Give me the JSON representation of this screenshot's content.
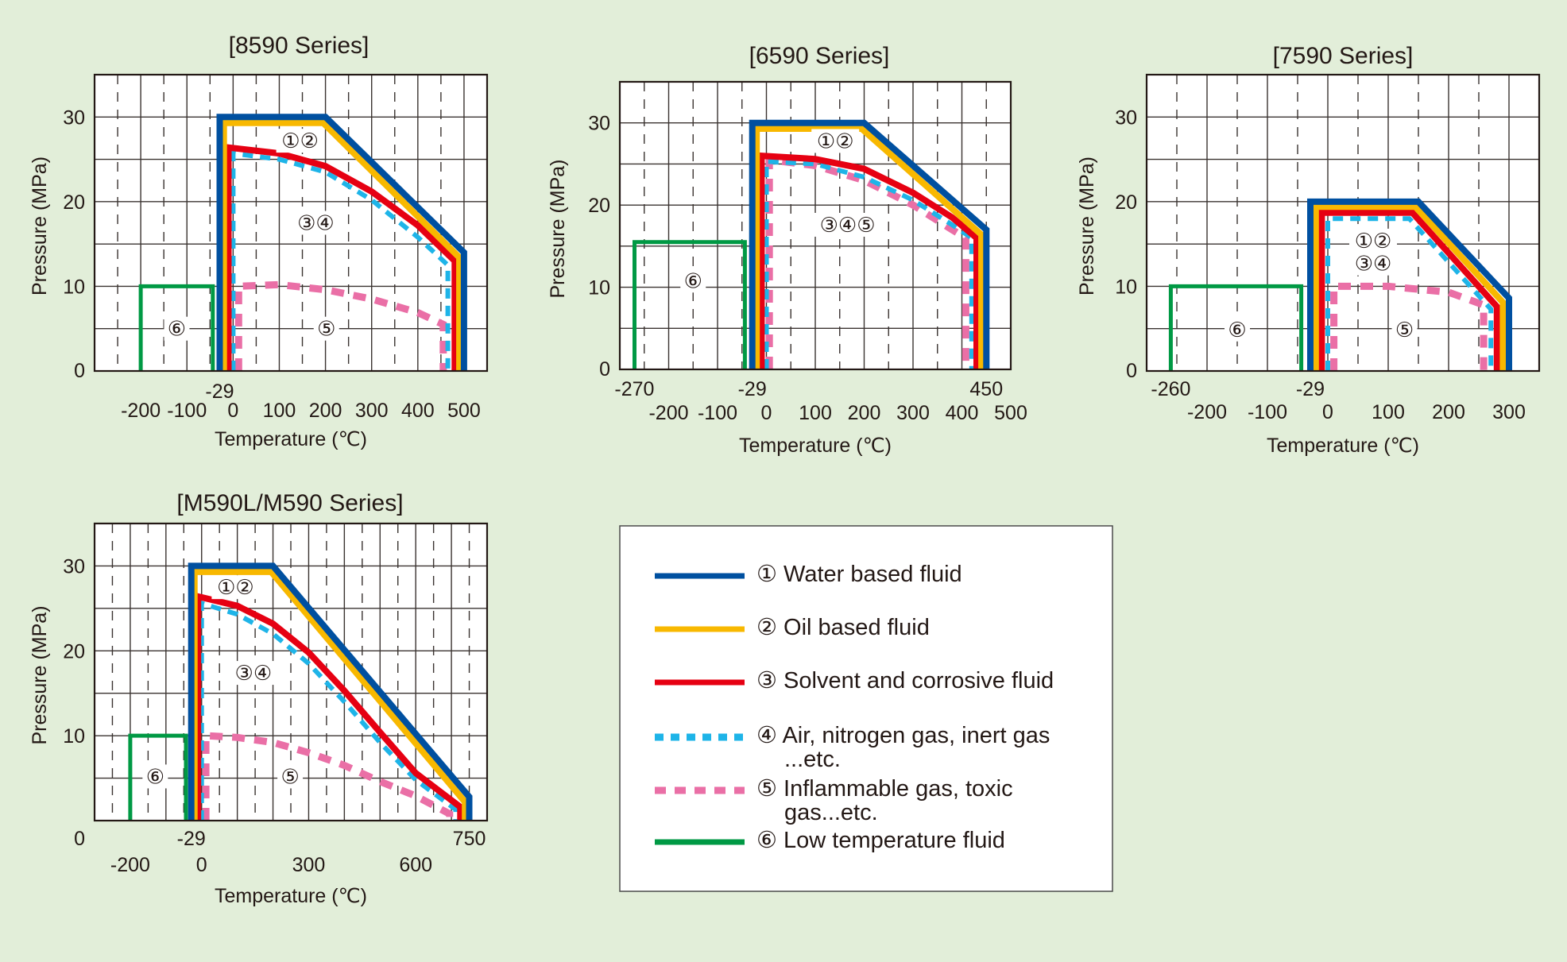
{
  "colors": {
    "background": "#e2eed9",
    "water": "#0050a0",
    "oil": "#f8b800",
    "solvent": "#e60012",
    "air": "#1eb4e8",
    "inflammable": "#ea6fa6",
    "low_temp": "#009944",
    "text": "#231815",
    "grid": "#3a3330"
  },
  "legend": {
    "items": [
      {
        "key": "water",
        "style": "solid",
        "lines": [
          "① Water based fluid"
        ]
      },
      {
        "key": "oil",
        "style": "solid",
        "lines": [
          "② Oil based fluid"
        ]
      },
      {
        "key": "solvent",
        "style": "solid",
        "lines": [
          "③ Solvent and corrosive fluid"
        ]
      },
      {
        "key": "air",
        "style": "dashed",
        "lines": [
          "④ Air, nitrogen gas, inert gas",
          "...etc."
        ]
      },
      {
        "key": "inflammable",
        "style": "dashed",
        "lines": [
          "⑤ Inflammable gas, toxic",
          "gas...etc."
        ]
      },
      {
        "key": "low_temp",
        "style": "solid",
        "lines": [
          "⑥ Low temperature fluid"
        ]
      }
    ]
  },
  "chart_data": [
    {
      "type": "line",
      "title": "[8590 Series]",
      "xlabel": "Temperature (℃)",
      "ylabel": "Pressure (MPa)",
      "xlim": [
        -300,
        550
      ],
      "ylim": [
        0,
        35
      ],
      "grid": true,
      "xticks": [
        "-200",
        "-100",
        "0",
        "100",
        "200",
        "300",
        "400",
        "500"
      ],
      "xticks_upper": [
        "-29"
      ],
      "yticks": [
        "0",
        "10",
        "20",
        "30"
      ],
      "series": [
        {
          "name": "① Water based fluid",
          "key": "water",
          "x": [
            -29,
            -29,
            200,
            500,
            500
          ],
          "y": [
            0,
            30,
            30,
            14,
            0
          ]
        },
        {
          "name": "② Oil based fluid",
          "key": "oil",
          "x": [
            -20,
            -20,
            195,
            490,
            490
          ],
          "y": [
            0,
            29.3,
            29.3,
            13.4,
            0
          ]
        },
        {
          "name": "③ Solvent and corrosive fluid",
          "key": "solvent",
          "x": [
            -10,
            -10,
            100,
            200,
            300,
            400,
            480,
            480
          ],
          "y": [
            0,
            26.4,
            25.7,
            24.2,
            21.2,
            17.2,
            13,
            0
          ]
        },
        {
          "name": "④ Air, nitrogen gas, inert gas",
          "key": "air",
          "x": [
            0,
            0,
            100,
            200,
            300,
            400,
            465,
            465
          ],
          "y": [
            0,
            25.7,
            25,
            23.5,
            20.2,
            15.8,
            12.5,
            0
          ]
        },
        {
          "name": "⑤ Inflammable gas, toxic gas",
          "key": "inflammable",
          "x": [
            12,
            12,
            100,
            200,
            300,
            400,
            455,
            455
          ],
          "y": [
            0,
            10,
            10.2,
            9.6,
            8.5,
            6.9,
            5.5,
            0
          ]
        },
        {
          "name": "⑥ Low temperature fluid",
          "key": "low_temp",
          "x": [
            -200,
            -200,
            -44,
            -44
          ],
          "y": [
            0,
            10,
            10,
            0
          ]
        }
      ],
      "annotations": [
        {
          "text": "①②",
          "x": 145,
          "y": 27.2
        },
        {
          "text": "③④",
          "x": 179,
          "y": 17.5
        },
        {
          "text": "⑤",
          "x": 202,
          "y": 5
        },
        {
          "text": "⑥",
          "x": -122,
          "y": 5
        }
      ]
    },
    {
      "type": "line",
      "title": "[6590 Series]",
      "xlabel": "Temperature (℃)",
      "ylabel": "Pressure (MPa)",
      "xlim": [
        -300,
        500
      ],
      "ylim": [
        0,
        35
      ],
      "grid": true,
      "xticks": [
        "-200",
        "-100",
        "0",
        "100",
        "200",
        "300",
        "400",
        "500"
      ],
      "xticks_upper": [
        "-270",
        "-29",
        "450"
      ],
      "yticks": [
        "0",
        "10",
        "20",
        "30"
      ],
      "series": [
        {
          "name": "① Water based fluid",
          "key": "water",
          "x": [
            -29,
            -29,
            200,
            450,
            450
          ],
          "y": [
            0,
            30,
            30,
            17,
            0
          ]
        },
        {
          "name": "② Oil based fluid",
          "key": "oil",
          "x": [
            -20,
            -20,
            195,
            440,
            440
          ],
          "y": [
            0,
            29.3,
            29.3,
            16.4,
            0
          ]
        },
        {
          "name": "③ Solvent and corrosive fluid",
          "key": "solvent",
          "x": [
            -10,
            -10,
            100,
            200,
            300,
            380,
            430,
            430
          ],
          "y": [
            0,
            26,
            25.6,
            24.4,
            21.5,
            18.5,
            16,
            0
          ]
        },
        {
          "name": "④ Air, nitrogen gas, inert gas",
          "key": "air",
          "x": [
            0,
            0,
            100,
            200,
            300,
            380,
            420,
            420
          ],
          "y": [
            0,
            25.3,
            25,
            23.4,
            20.6,
            17.6,
            16,
            0
          ]
        },
        {
          "name": "⑤ Inflammable gas, toxic gas",
          "key": "inflammable",
          "x": [
            6,
            6,
            100,
            200,
            300,
            380,
            408,
            408
          ],
          "y": [
            0,
            25.5,
            24.8,
            23,
            20,
            17,
            16,
            0
          ]
        },
        {
          "name": "⑥ Low temperature fluid",
          "key": "low_temp",
          "x": [
            -270,
            -270,
            -44,
            -44
          ],
          "y": [
            0,
            15.5,
            15.5,
            0
          ]
        }
      ],
      "annotations": [
        {
          "text": "①②",
          "x": 141,
          "y": 27.8
        },
        {
          "text": "③④⑤",
          "x": 166,
          "y": 17.6
        },
        {
          "text": "⑥",
          "x": -150,
          "y": 10.8
        }
      ]
    },
    {
      "type": "line",
      "title": "[7590 Series]",
      "xlabel": "Temperature (℃)",
      "ylabel": "Pressure (MPa)",
      "xlim": [
        -300,
        350
      ],
      "ylim": [
        0,
        35
      ],
      "grid": true,
      "xticks": [
        "-200",
        "-100",
        "0",
        "100",
        "200",
        "300"
      ],
      "xticks_upper": [
        "-260",
        "-29"
      ],
      "yticks": [
        "0",
        "10",
        "20",
        "30"
      ],
      "series": [
        {
          "name": "① Water based fluid",
          "key": "water",
          "x": [
            -29,
            -29,
            150,
            300,
            300
          ],
          "y": [
            0,
            20,
            20,
            8.6,
            0
          ]
        },
        {
          "name": "② Oil based fluid",
          "key": "oil",
          "x": [
            -20,
            -20,
            145,
            290,
            290
          ],
          "y": [
            0,
            19.4,
            19.4,
            8.1,
            0
          ]
        },
        {
          "name": "③ Solvent and corrosive fluid",
          "key": "solvent",
          "x": [
            -10,
            -10,
            140,
            280,
            280
          ],
          "y": [
            0,
            18.7,
            18.7,
            7.6,
            0
          ]
        },
        {
          "name": "④ Air, nitrogen gas, inert gas",
          "key": "air",
          "x": [
            0,
            0,
            135,
            270,
            270
          ],
          "y": [
            0,
            18,
            18,
            7.3,
            0
          ]
        },
        {
          "name": "⑤ Inflammable gas, toxic gas",
          "key": "inflammable",
          "x": [
            10,
            10,
            100,
            200,
            258,
            258
          ],
          "y": [
            0,
            10,
            10,
            9.3,
            7.8,
            0
          ]
        },
        {
          "name": "⑥ Low temperature fluid",
          "key": "low_temp",
          "x": [
            -260,
            -260,
            -44,
            -44
          ],
          "y": [
            0,
            10,
            10,
            0
          ]
        }
      ],
      "annotations": [
        {
          "text": "①②",
          "x": 75,
          "y": 15.4
        },
        {
          "text": "③④",
          "x": 75,
          "y": 12.7
        },
        {
          "text": "⑤",
          "x": 127,
          "y": 4.9
        },
        {
          "text": "⑥",
          "x": -150,
          "y": 4.9
        }
      ]
    },
    {
      "type": "line",
      "title": "[M590L/M590 Series]",
      "xlabel": "Temperature (℃)",
      "ylabel": "Pressure (MPa)",
      "xlim": [
        -300,
        800
      ],
      "ylim": [
        0,
        35
      ],
      "grid": true,
      "xticks": [
        "-200",
        "0",
        "300",
        "600"
      ],
      "xticks_upper": [
        "-29",
        "750"
      ],
      "yticks": [
        "0",
        "10",
        "20",
        "30"
      ],
      "series": [
        {
          "name": "① Water based fluid",
          "key": "water",
          "x": [
            -29,
            -29,
            200,
            750,
            750
          ],
          "y": [
            0,
            30,
            30,
            2.8,
            0
          ]
        },
        {
          "name": "② Oil based fluid",
          "key": "oil",
          "x": [
            -20,
            -20,
            195,
            738,
            738
          ],
          "y": [
            0,
            29.3,
            29.3,
            2.2,
            0
          ]
        },
        {
          "name": "③ Solvent and corrosive fluid",
          "key": "solvent",
          "x": [
            -10,
            -10,
            100,
            200,
            300,
            400,
            500,
            600,
            725,
            725
          ],
          "y": [
            0,
            26.4,
            25.3,
            23.2,
            19.8,
            15.3,
            10.4,
            5.6,
            1.6,
            0
          ]
        },
        {
          "name": "④ Air, nitrogen gas, inert gas",
          "key": "air",
          "x": [
            0,
            0,
            100,
            200,
            300,
            400,
            500,
            600,
            712,
            712
          ],
          "y": [
            0,
            25.6,
            24.3,
            22,
            18.5,
            14,
            9.2,
            4.8,
            1.3,
            0
          ]
        },
        {
          "name": "⑤ Inflammable gas, toxic gas",
          "key": "inflammable",
          "x": [
            12,
            12,
            100,
            200,
            300,
            400,
            500,
            600,
            695,
            695
          ],
          "y": [
            0,
            10,
            9.8,
            9.2,
            8,
            6.5,
            4.6,
            2.9,
            0.8,
            0
          ]
        },
        {
          "name": "⑥ Low temperature fluid",
          "key": "low_temp",
          "x": [
            -200,
            -200,
            -44,
            -44
          ],
          "y": [
            0,
            10,
            10,
            0
          ]
        }
      ],
      "annotations": [
        {
          "text": "①②",
          "x": 95,
          "y": 27.5
        },
        {
          "text": "③④",
          "x": 145,
          "y": 17.4
        },
        {
          "text": "⑤",
          "x": 248,
          "y": 5.2
        },
        {
          "text": "⑥",
          "x": -130,
          "y": 5.2
        }
      ]
    }
  ]
}
